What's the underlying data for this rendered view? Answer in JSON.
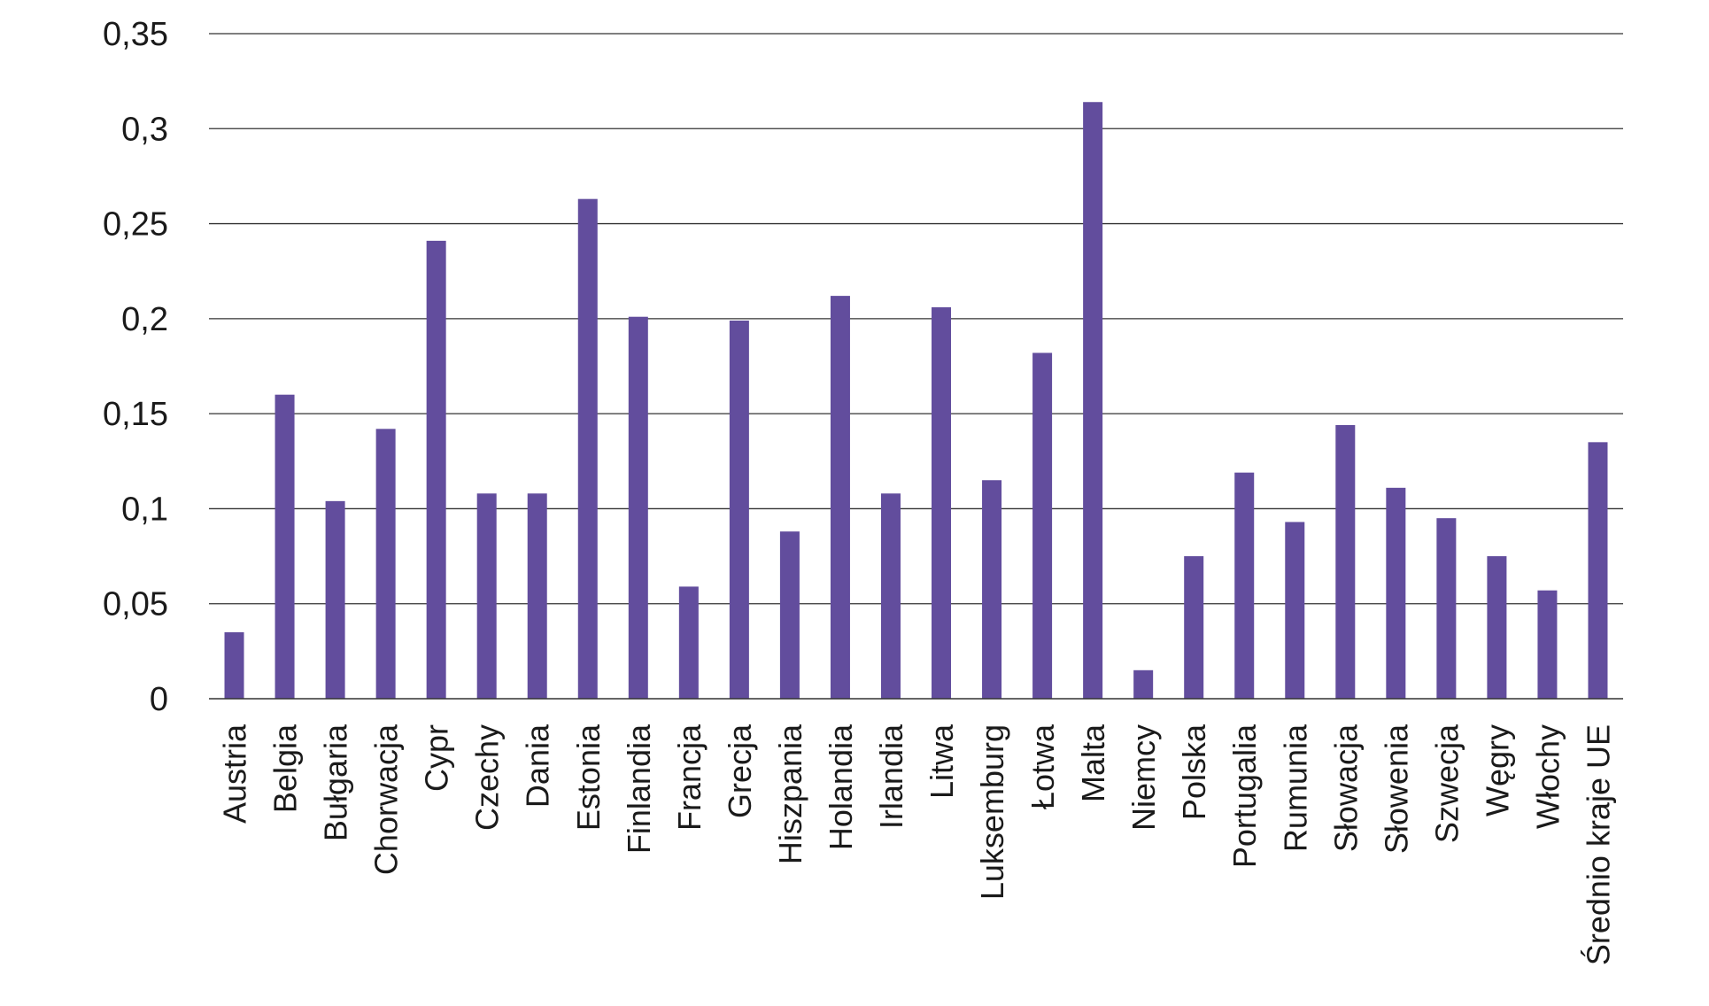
{
  "colors": {
    "bar": "#624D9D",
    "grid": "#333333",
    "axis": "#333333",
    "text": "#1a1a1a",
    "background": "#ffffff"
  },
  "chart_data": {
    "type": "bar",
    "title": "",
    "xlabel": "",
    "ylabel": "",
    "ylim": [
      0,
      0.35
    ],
    "yticks": [
      0,
      0.05,
      0.1,
      0.15,
      0.2,
      0.25,
      0.3,
      0.35
    ],
    "ytick_labels": [
      "0",
      "0,05",
      "0,1",
      "0,15",
      "0,2",
      "0,25",
      "0,3",
      "0,35"
    ],
    "grid": true,
    "legend": "none",
    "categories": [
      "Austria",
      "Belgia",
      "Bułgaria",
      "Chorwacja",
      "Cypr",
      "Czechy",
      "Dania",
      "Estonia",
      "Finlandia",
      "Francja",
      "Grecja",
      "Hiszpania",
      "Holandia",
      "Irlandia",
      "Litwa",
      "Luksemburg",
      "Łotwa",
      "Malta",
      "Niemcy",
      "Polska",
      "Portugalia",
      "Rumunia",
      "Słowacja",
      "Słowenia",
      "Szwecja",
      "Węgry",
      "Włochy",
      "Średnio kraje UE"
    ],
    "values": [
      0.035,
      0.16,
      0.104,
      0.142,
      0.241,
      0.108,
      0.108,
      0.263,
      0.201,
      0.059,
      0.199,
      0.088,
      0.212,
      0.108,
      0.206,
      0.115,
      0.182,
      0.314,
      0.015,
      0.075,
      0.119,
      0.093,
      0.144,
      0.111,
      0.095,
      0.075,
      0.057,
      0.135
    ]
  }
}
